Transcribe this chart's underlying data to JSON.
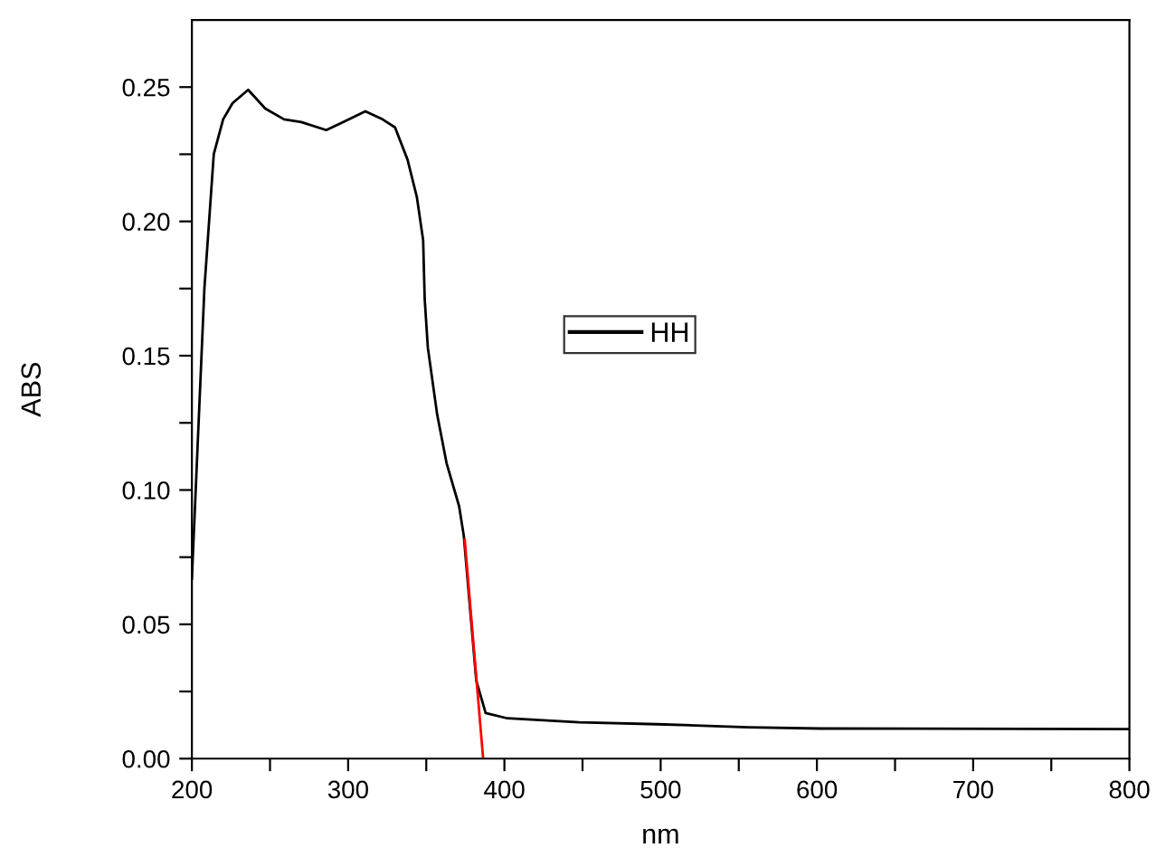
{
  "chart_data": {
    "type": "line",
    "xlabel": "nm",
    "ylabel": "ABS",
    "series": [
      {
        "name": "HH",
        "color": "#000000",
        "x": [
          200,
          208,
          214,
          220,
          226,
          236,
          247,
          259,
          270,
          286,
          297,
          311,
          322,
          330,
          338,
          344,
          348,
          349,
          351,
          357,
          363,
          371,
          374,
          378,
          382,
          388,
          402,
          448,
          498,
          556,
          602,
          799
        ],
        "values": [
          0.067,
          0.175,
          0.225,
          0.238,
          0.244,
          0.249,
          0.242,
          0.238,
          0.237,
          0.234,
          0.237,
          0.241,
          0.238,
          0.235,
          0.223,
          0.209,
          0.193,
          0.171,
          0.153,
          0.128,
          0.11,
          0.094,
          0.083,
          0.056,
          0.029,
          0.017,
          0.015,
          0.0135,
          0.0128,
          0.0117,
          0.0112,
          0.011
        ]
      },
      {
        "color": "#ff0000",
        "x": [
          374.6,
          386.4
        ],
        "values": [
          0.0815,
          0
        ]
      }
    ],
    "xlim": [
      200,
      800
    ],
    "ylim": [
      0,
      0.275
    ],
    "xticks": [
      200,
      {
        "value": 250,
        "label": null
      },
      300,
      {
        "value": 350,
        "label": null
      },
      400,
      {
        "value": 450,
        "label": null
      },
      500,
      {
        "value": 550,
        "label": null
      },
      600,
      {
        "value": 650,
        "label": null
      },
      700,
      {
        "value": 750,
        "label": null
      },
      800
    ],
    "yticks": [
      {
        "value": 0,
        "label": "0.00"
      },
      {
        "value": 0.025,
        "label": null
      },
      {
        "value": 0.05,
        "label": "0.05"
      },
      {
        "value": 0.075,
        "label": null
      },
      {
        "value": 0.1,
        "label": "0.10"
      },
      {
        "value": 0.125,
        "label": null
      },
      {
        "value": 0.15,
        "label": "0.15"
      },
      {
        "value": 0.175,
        "label": null
      },
      {
        "value": 0.2,
        "label": "0.20"
      },
      {
        "value": 0.225,
        "label": null
      },
      {
        "value": 0.25,
        "label": "0.25"
      }
    ],
    "legend": "center",
    "grid": false,
    "marker": "none",
    "line_style": "solid"
  }
}
